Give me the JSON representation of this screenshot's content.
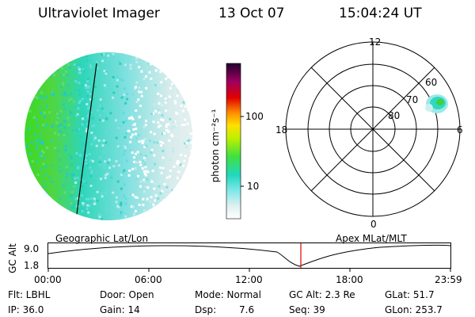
{
  "header": {
    "title": "Ultraviolet Imager",
    "date": "13 Oct 07",
    "time": "15:04:24 UT"
  },
  "colorbar": {
    "label": "photon cm⁻²s⁻¹",
    "ticks": [
      "100",
      "10"
    ]
  },
  "polar": {
    "mlt_labels": {
      "top": "12",
      "left": "18",
      "right": "6",
      "bottom": "0"
    },
    "lat_labels": [
      "60",
      "70",
      "80"
    ]
  },
  "timeline": {
    "axis_label": "GC Alt",
    "ticks_y": [
      "9.0",
      "1.8"
    ],
    "left_title": "Geographic Lat/Lon",
    "right_title": "Apex MLat/MLT",
    "ticks_x": [
      "00:00",
      "06:00",
      "12:00",
      "18:00",
      "23:59"
    ]
  },
  "info": {
    "row1": [
      "Flt: LBHL",
      "Door: Open",
      "Mode: Normal",
      "GC Alt: 2.3 Re",
      "GLat: 51.7"
    ],
    "row2": [
      "IP: 36.0",
      "Gain: 14",
      "Dsp:",
      "7.6",
      "Seq: 39",
      "GLon: 253.7"
    ]
  }
}
